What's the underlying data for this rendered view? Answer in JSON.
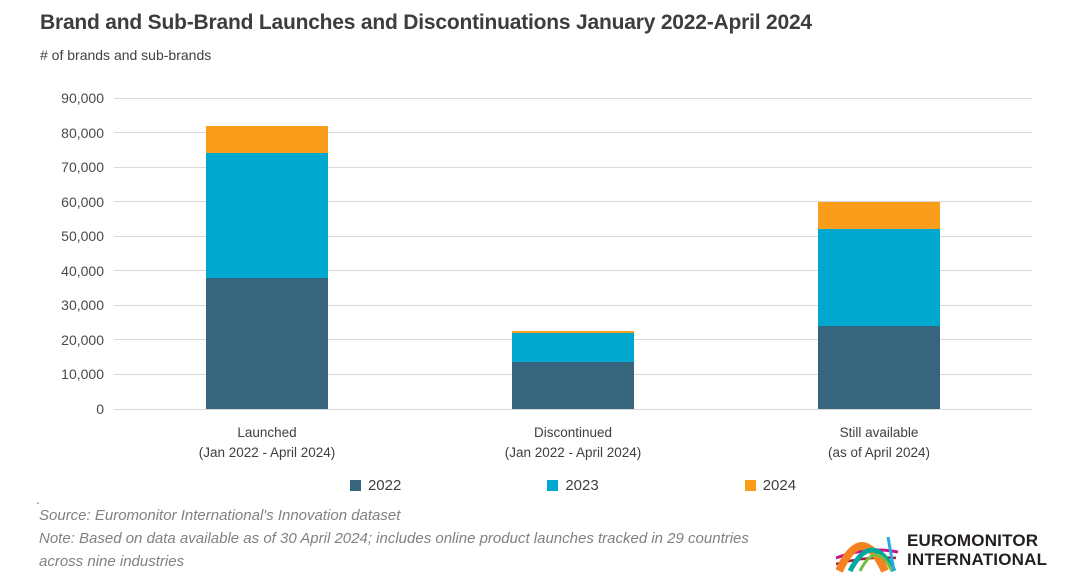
{
  "header": {
    "title": "Brand and Sub-Brand Launches and Discontinuations January 2022-April 2024",
    "subtitle": "# of brands and sub-brands"
  },
  "chart_data": {
    "type": "bar",
    "stacked": true,
    "title": "Brand and Sub-Brand Launches and Discontinuations January 2022-April 2024",
    "ylabel": "# of brands and sub-brands",
    "xlabel": "",
    "ylim": [
      0,
      90000
    ],
    "ytick_step": 10000,
    "ytick_labels": [
      "0",
      "10,000",
      "20,000",
      "30,000",
      "40,000",
      "50,000",
      "60,000",
      "70,000",
      "80,000",
      "90,000"
    ],
    "grid": true,
    "legend_position": "bottom",
    "categories": [
      {
        "label": "Launched",
        "sublabel": "(Jan 2022 - April 2024)"
      },
      {
        "label": "Discontinued",
        "sublabel": "(Jan 2022 - April 2024)"
      },
      {
        "label": "Still available",
        "sublabel": "(as of April 2024)"
      }
    ],
    "series": [
      {
        "name": "2022",
        "color": "#37657E",
        "values": [
          38000,
          13500,
          24000
        ]
      },
      {
        "name": "2023",
        "color": "#00A7CE",
        "values": [
          36000,
          8500,
          28000
        ]
      },
      {
        "name": "2024",
        "color": "#F99D1B",
        "values": [
          8000,
          500,
          8000
        ]
      }
    ],
    "stack_totals": [
      82000,
      22500,
      60000
    ]
  },
  "footer": {
    "stray_period": ".",
    "source": "Source: Euromonitor International's Innovation dataset",
    "note": "Note: Based on data available as of 30 April 2024; includes online product launches tracked in 29 countries across nine industries"
  },
  "logo": {
    "line1": "EUROMONITOR",
    "line2": "INTERNATIONAL"
  },
  "colors": {
    "gridline": "#d9d9d9",
    "title_text": "#3d3d3d",
    "axis_text": "#4a4a4a",
    "footer_text": "#818181",
    "series_2022": "#37657E",
    "series_2023": "#00A7CE",
    "series_2024": "#F99D1B"
  }
}
